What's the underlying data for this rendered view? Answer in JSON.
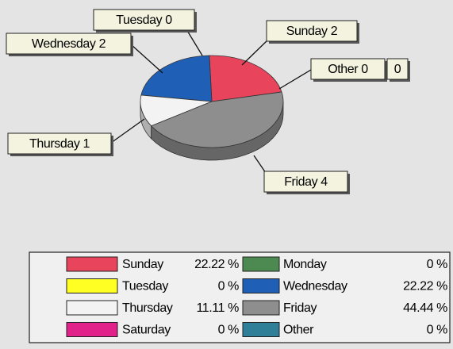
{
  "chart_data": {
    "type": "pie",
    "categories": [
      "Sunday",
      "Monday",
      "Tuesday",
      "Wednesday",
      "Thursday",
      "Friday",
      "Saturday",
      "Other"
    ],
    "values": [
      2,
      0,
      0,
      2,
      1,
      4,
      0,
      0
    ],
    "colors": [
      "#e8455c",
      "#4d8a52",
      "#ffff24",
      "#1f5fb5",
      "#f3f3f3",
      "#8e8e8e",
      "#e0228a",
      "#2f7f99"
    ],
    "legend_labels": [
      "22.22 %",
      "0 %",
      "0 %",
      "22.22 %",
      "11.11 %",
      "44.44 %",
      "0 %",
      "0 %"
    ],
    "legend": "bottom"
  }
}
